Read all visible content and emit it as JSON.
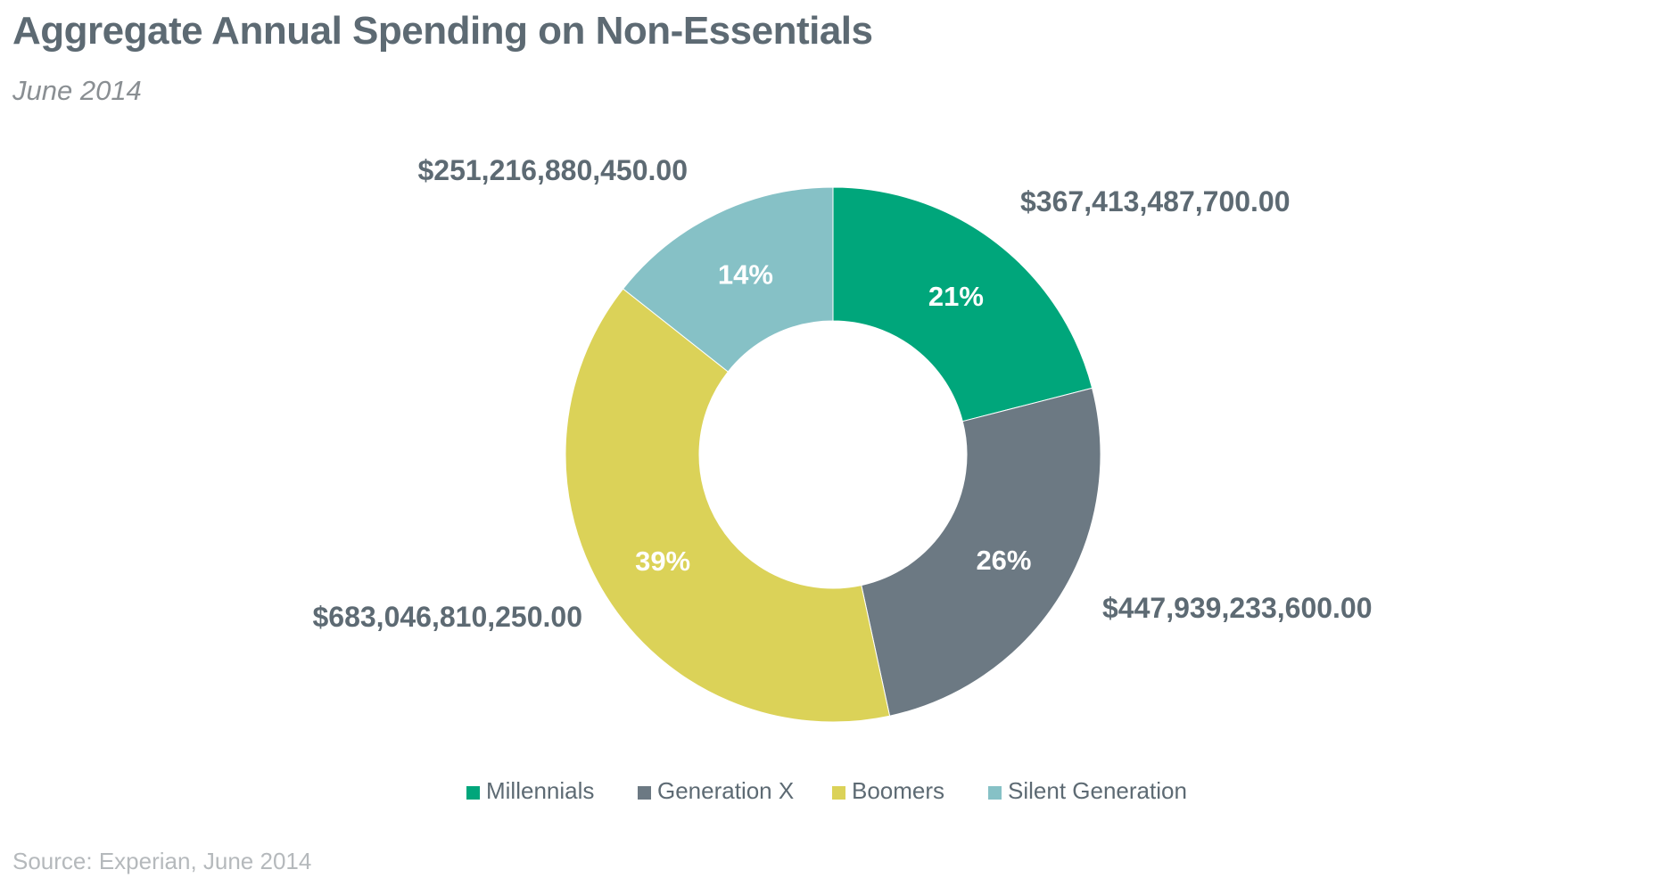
{
  "title": "Aggregate Annual Spending on Non-Essentials",
  "subtitle": "June 2014",
  "source": "Source: Experian, June 2014",
  "chart_data": {
    "type": "pie",
    "donut": true,
    "categories": [
      "Millennials",
      "Generation X",
      "Boomers",
      "Silent Generation"
    ],
    "values": [
      367413487700.0,
      447939233600.0,
      683046810250.0,
      251216880450.0
    ],
    "value_labels": [
      "$367,413,487,700.00",
      "$447,939,233,600.00",
      "$683,046,810,250.00",
      "$251,216,880,450.00"
    ],
    "percent_labels": [
      "21%",
      "26%",
      "39%",
      "14%"
    ],
    "colors": [
      "#00a67b",
      "#6c7983",
      "#dbd258",
      "#86c1c6"
    ],
    "legend_position": "bottom"
  }
}
